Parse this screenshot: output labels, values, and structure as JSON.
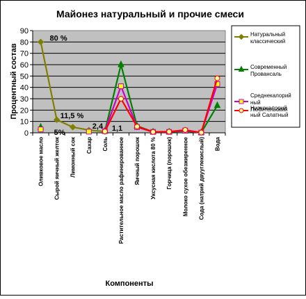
{
  "chart_data": {
    "type": "line",
    "title": "Майонез натуральный и прочие смеси",
    "xlabel": "Компоненты",
    "ylabel": "Процентный состав",
    "ylim": [
      0,
      90
    ],
    "yticks": [
      0,
      10,
      20,
      30,
      40,
      50,
      60,
      70,
      80,
      90
    ],
    "grid": "horizontal",
    "legend_position": "right",
    "categories": [
      "Оливковое масло",
      "Сырой яичный желток",
      "Лимонный сок",
      "Сахар",
      "Соль",
      "Растительное масло рафинированное",
      "Яичный порошок",
      "Уксусная кислота 80 %",
      "Горчица (порошок)",
      "Молоко сухое обезжиренное",
      "Сода (натрий двууглекислый)",
      "Вода"
    ],
    "series": [
      {
        "name": "Натуральный классический",
        "color": "#808000",
        "marker": "diamond",
        "marker_fill": "#808000",
        "values": [
          80,
          11.5,
          5,
          2.4,
          1.1,
          null,
          null,
          null,
          null,
          null,
          null,
          null
        ]
      },
      {
        "name": "Современный Провансаль",
        "color": "#008000",
        "marker": "triangle",
        "marker_fill": "#008000",
        "values": [
          null,
          null,
          null,
          null,
          1.5,
          60,
          6,
          0.8,
          0.8,
          1.5,
          0.2,
          24
        ]
      },
      {
        "name": "Среднекалорий ный Любительский",
        "color": "#CC00CC",
        "marker": "square",
        "marker_fill": "#FFFF00",
        "values": [
          null,
          null,
          null,
          null,
          1.5,
          41,
          5,
          0.8,
          0.8,
          2,
          0.2,
          43
        ]
      },
      {
        "name": "Низкокалорий ный Салатный",
        "color": "#FF0000",
        "marker": "circle",
        "marker_fill": "#FFFF99",
        "values": [
          null,
          null,
          null,
          null,
          1.2,
          30,
          5.5,
          0.8,
          1,
          2.5,
          0.2,
          48
        ]
      }
    ],
    "extra_markers": [
      {
        "series_index": 1,
        "category_index": 0,
        "value": 5
      },
      {
        "series_index": 2,
        "category_index": 0,
        "value": 3
      },
      {
        "series_index": 2,
        "category_index": 3,
        "value": 1
      }
    ],
    "annotations": [
      {
        "text": "80 %",
        "category_index": 0,
        "value": 80
      },
      {
        "text": "11,5 %",
        "category_index": 1,
        "value": 11.5
      },
      {
        "text": "5%",
        "category_index": 1,
        "value": 5
      },
      {
        "text": "2,4",
        "category_index": 3,
        "value": 2.4
      },
      {
        "text": "1,1",
        "category_index": 4,
        "value": 1.1
      }
    ]
  }
}
